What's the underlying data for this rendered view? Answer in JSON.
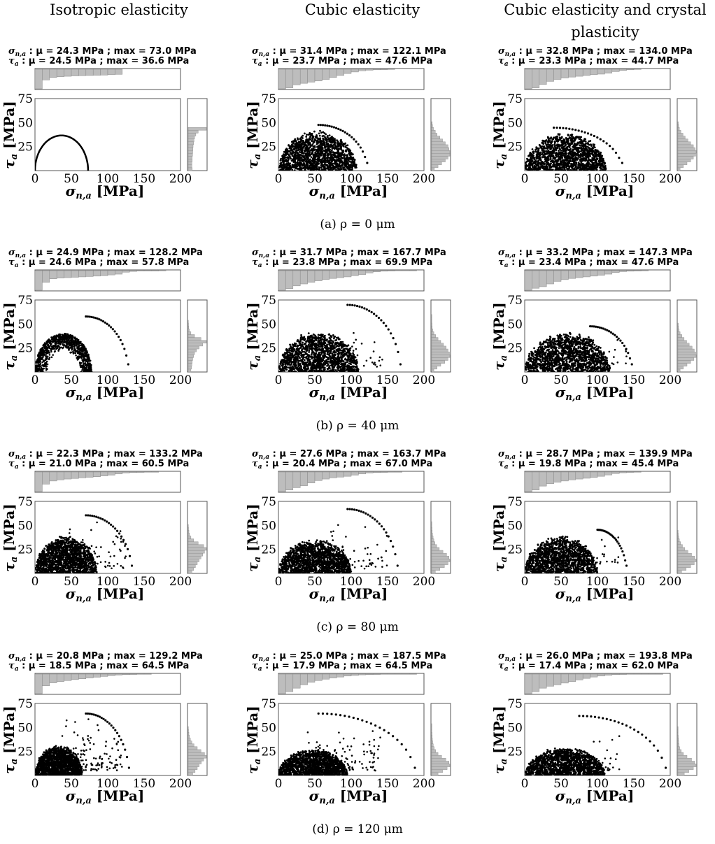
{
  "column_titles": [
    "Isotropic elasticity",
    "Cubic elasticity",
    "Cubic elasticity and crystal plasticity"
  ],
  "column_titles_lines": {
    "c0": [
      "Isotropic elasticity"
    ],
    "c1": [
      "Cubic elasticity"
    ],
    "c2": [
      "Cubic elasticity and crystal",
      "plasticity"
    ]
  },
  "captions": [
    "(a) ρ = 0 μm",
    "(b) ρ = 40 μm",
    "(c) ρ = 80 μm",
    "(d) ρ = 120 μm"
  ],
  "labels": {
    "sigma": "σ",
    "sigma_sub": "n,a",
    "tau": "τ",
    "tau_sub": "a",
    "unit": "[MPa]",
    "stats_sep": " : μ = "
  },
  "chart_data": {
    "type": "scatter",
    "xlim": [
      0,
      200
    ],
    "ylim": [
      0,
      75
    ],
    "xticks": [
      0,
      50,
      100,
      150,
      200
    ],
    "yticks": [
      25,
      50,
      75
    ],
    "xlabel": "σn,a [MPa]",
    "ylabel": "τa [MPa]",
    "panels": [
      {
        "id": "a0",
        "stats": {
          "sigma_mean": "24.3",
          "sigma_max": "73.0",
          "tau_mean": "24.5",
          "tau_max": "36.6"
        },
        "sigma_stat": "σn,a : μ = 24.3 MPa ; max = 73.0 MPa",
        "tau_stat": "τa : μ = 24.5 MPa ; max = 36.6 MPa",
        "xhist": [
          1.0,
          0.55,
          0.42,
          0.38,
          0.36,
          0.34,
          0.33,
          0.32,
          0.31,
          0.3,
          0.28,
          0.26,
          0,
          0,
          0,
          0,
          0,
          0,
          0,
          0
        ],
        "yhist": [
          0.22,
          0.2,
          0.2,
          0.22,
          0.22,
          0.24,
          0.25,
          0.26,
          0.27,
          0.3,
          0.32,
          0.35,
          0.42,
          0.55,
          1.0,
          0,
          0,
          0,
          0,
          0,
          0,
          0,
          0,
          0,
          0
        ],
        "arc": {
          "x0": 0,
          "x1": 73,
          "peak": 36.6
        }
      },
      {
        "id": "a1",
        "stats": {
          "sigma_mean": "31.4",
          "sigma_max": "122.1",
          "tau_mean": "23.7",
          "tau_max": "47.6"
        },
        "sigma_stat": "σn,a : μ = 31.4 MPa ; max = 122.1 MPa",
        "tau_stat": "τa : μ = 23.7 MPa ; max = 47.6 MPa",
        "xhist": [
          1.0,
          0.95,
          0.8,
          0.72,
          0.66,
          0.6,
          0.52,
          0.42,
          0.32,
          0.22,
          0.14,
          0.08,
          0.05,
          0.03,
          0.02,
          0.01,
          0,
          0,
          0,
          0
        ],
        "yhist": [
          0.15,
          0.35,
          0.55,
          0.75,
          0.9,
          1.0,
          1.0,
          0.95,
          0.9,
          0.75,
          0.6,
          0.45,
          0.3,
          0.2,
          0.1,
          0.05,
          0.03,
          0,
          0,
          0,
          0,
          0,
          0,
          0,
          0
        ],
        "cloud": {
          "xmax": 108,
          "ymax": 42
        },
        "arc": {
          "x0": 55,
          "x1": 122,
          "peak": 47.6
        }
      },
      {
        "id": "a2",
        "stats": {
          "sigma_mean": "32.8",
          "sigma_max": "134.0",
          "tau_mean": "23.3",
          "tau_max": "44.7"
        },
        "sigma_stat": "σn,a : μ = 32.8 MPa ; max = 134.0 MPa",
        "tau_stat": "τa : μ = 23.3 MPa ; max = 44.7 MPa",
        "xhist": [
          1.0,
          0.95,
          0.78,
          0.62,
          0.52,
          0.45,
          0.4,
          0.36,
          0.32,
          0.28,
          0.25,
          0.2,
          0.12,
          0.06,
          0.03,
          0.01,
          0,
          0,
          0,
          0
        ],
        "yhist": [
          0.12,
          0.3,
          0.5,
          0.7,
          0.85,
          0.98,
          1.0,
          0.95,
          0.85,
          0.7,
          0.55,
          0.4,
          0.28,
          0.16,
          0.08,
          0.04,
          0.02,
          0,
          0,
          0,
          0,
          0,
          0,
          0,
          0
        ],
        "cloud": {
          "xmax": 112,
          "ymax": 40
        },
        "arc": {
          "x0": 40,
          "x1": 134,
          "peak": 44.7
        }
      },
      {
        "id": "b0",
        "stats": {
          "sigma_mean": "24.9",
          "sigma_max": "128.2",
          "tau_mean": "24.6",
          "tau_max": "57.8"
        },
        "sigma_stat": "σn,a : μ = 24.9 MPa ; max = 128.2 MPa",
        "tau_stat": "τa : μ = 24.6 MPa ; max = 57.8 MPa",
        "xhist": [
          1.0,
          0.6,
          0.42,
          0.38,
          0.36,
          0.34,
          0.32,
          0.3,
          0.28,
          0.26,
          0.22,
          0.18,
          0.08,
          0.04,
          0.02,
          0.02,
          0.02,
          0.01,
          0,
          0
        ],
        "yhist": [
          0.15,
          0.18,
          0.2,
          0.22,
          0.25,
          0.3,
          0.35,
          0.45,
          0.6,
          0.8,
          1.0,
          0.7,
          0.35,
          0.15,
          0.06,
          0.03,
          0.02,
          0.01,
          0,
          0,
          0,
          0,
          0,
          0,
          0
        ],
        "ring": {
          "x0": 0,
          "x1": 78,
          "peak": 40
        },
        "arc": {
          "x0": 70,
          "x1": 128.2,
          "peak": 57.8
        }
      },
      {
        "id": "b1",
        "stats": {
          "sigma_mean": "31.7",
          "sigma_max": "167.7",
          "tau_mean": "23.8",
          "tau_max": "69.9"
        },
        "sigma_stat": "σn,a : μ = 31.7 MPa ; max = 167.7 MPa",
        "tau_stat": "τa : μ = 23.8 MPa ; max = 69.9 MPa",
        "xhist": [
          1.0,
          0.92,
          0.78,
          0.68,
          0.6,
          0.52,
          0.45,
          0.4,
          0.36,
          0.32,
          0.26,
          0.2,
          0.12,
          0.06,
          0.03,
          0.02,
          0.01,
          0.01,
          0.01,
          0
        ],
        "yhist": [
          0.12,
          0.3,
          0.5,
          0.72,
          0.9,
          1.0,
          0.98,
          0.9,
          0.8,
          0.65,
          0.5,
          0.35,
          0.22,
          0.12,
          0.06,
          0.03,
          0.02,
          0.01,
          0.01,
          0.01,
          0,
          0,
          0,
          0,
          0
        ],
        "cloud": {
          "xmax": 110,
          "ymax": 43
        },
        "sparse": {
          "xmin": 70,
          "xmax": 145,
          "ymin": 5,
          "ymax": 55,
          "n": 35
        },
        "arc": {
          "x0": 95,
          "x1": 167.7,
          "peak": 69.9
        }
      },
      {
        "id": "b2",
        "stats": {
          "sigma_mean": "33.2",
          "sigma_max": "147.3",
          "tau_mean": "23.4",
          "tau_max": "47.6"
        },
        "sigma_stat": "σn,a : μ = 33.2 MPa ; max = 147.3 MPa",
        "tau_stat": "τa : μ = 23.4 MPa ; max = 47.6 MPa",
        "xhist": [
          1.0,
          0.9,
          0.82,
          0.68,
          0.55,
          0.46,
          0.4,
          0.36,
          0.32,
          0.28,
          0.24,
          0.18,
          0.1,
          0.05,
          0.03,
          0.02,
          0.01,
          0,
          0,
          0
        ],
        "yhist": [
          0.12,
          0.3,
          0.5,
          0.7,
          0.88,
          1.0,
          0.98,
          0.9,
          0.78,
          0.62,
          0.48,
          0.34,
          0.22,
          0.12,
          0.06,
          0.03,
          0.02,
          0,
          0,
          0,
          0,
          0,
          0,
          0,
          0
        ],
        "cloud": {
          "xmax": 118,
          "ymax": 42
        },
        "sparse": {
          "xmin": 95,
          "xmax": 140,
          "ymin": 8,
          "ymax": 40,
          "n": 15
        },
        "arc": {
          "x0": 90,
          "x1": 147.3,
          "peak": 47.6
        }
      },
      {
        "id": "c0",
        "stats": {
          "sigma_mean": "22.3",
          "sigma_max": "133.2",
          "tau_mean": "21.0",
          "tau_max": "60.5"
        },
        "sigma_stat": "σn,a : μ = 22.3 MPa ; max = 133.2 MPa",
        "tau_stat": "τa : μ = 21.0 MPa ; max = 60.5 MPa",
        "xhist": [
          1.0,
          0.62,
          0.46,
          0.4,
          0.36,
          0.33,
          0.3,
          0.27,
          0.24,
          0.2,
          0.16,
          0.1,
          0.05,
          0.03,
          0.02,
          0.01,
          0.01,
          0,
          0,
          0
        ],
        "yhist": [
          0.2,
          0.3,
          0.4,
          0.5,
          0.6,
          0.7,
          0.8,
          0.9,
          1.0,
          0.85,
          0.55,
          0.3,
          0.15,
          0.07,
          0.04,
          0.02,
          0.01,
          0,
          0,
          0,
          0,
          0,
          0,
          0,
          0
        ],
        "cloud": {
          "xmax": 85,
          "ymax": 40
        },
        "sparse": {
          "xmin": 45,
          "xmax": 125,
          "ymin": 5,
          "ymax": 58,
          "n": 70
        },
        "arc": {
          "x0": 70,
          "x1": 133.2,
          "peak": 60.5
        }
      },
      {
        "id": "c1",
        "stats": {
          "sigma_mean": "27.6",
          "sigma_max": "163.7",
          "tau_mean": "20.4",
          "tau_max": "67.0"
        },
        "sigma_stat": "σn,a : μ = 27.6 MPa ; max = 163.7 MPa",
        "tau_stat": "τa : μ = 20.4 MPa ; max = 67.0 MPa",
        "xhist": [
          1.0,
          0.92,
          0.8,
          0.7,
          0.56,
          0.44,
          0.36,
          0.3,
          0.26,
          0.22,
          0.16,
          0.1,
          0.05,
          0.03,
          0.02,
          0.01,
          0.01,
          0,
          0,
          0
        ],
        "yhist": [
          0.2,
          0.45,
          0.7,
          0.9,
          1.0,
          0.95,
          0.82,
          0.62,
          0.42,
          0.28,
          0.18,
          0.12,
          0.08,
          0.05,
          0.03,
          0.02,
          0.01,
          0.01,
          0,
          0,
          0,
          0,
          0,
          0,
          0
        ],
        "cloud": {
          "xmax": 100,
          "ymax": 36
        },
        "sparse": {
          "xmin": 60,
          "xmax": 150,
          "ymin": 5,
          "ymax": 60,
          "n": 70
        },
        "arc": {
          "x0": 95,
          "x1": 163.7,
          "peak": 67.0
        }
      },
      {
        "id": "c2",
        "stats": {
          "sigma_mean": "28.7",
          "sigma_max": "139.9",
          "tau_mean": "19.8",
          "tau_max": "45.4"
        },
        "sigma_stat": "σn,a : μ = 28.7 MPa ; max = 139.9 MPa",
        "tau_stat": "τa : μ = 19.8 MPa ; max = 45.4 MPa",
        "xhist": [
          1.0,
          0.92,
          0.72,
          0.6,
          0.52,
          0.46,
          0.4,
          0.36,
          0.32,
          0.28,
          0.22,
          0.15,
          0.08,
          0.04,
          0.02,
          0.01,
          0,
          0,
          0,
          0
        ],
        "yhist": [
          0.2,
          0.45,
          0.7,
          0.9,
          1.0,
          0.92,
          0.75,
          0.55,
          0.38,
          0.25,
          0.15,
          0.08,
          0.04,
          0.02,
          0.01,
          0,
          0,
          0,
          0,
          0,
          0,
          0,
          0,
          0,
          0
        ],
        "cloud": {
          "xmax": 100,
          "ymax": 40
        },
        "sparse": {
          "xmin": 90,
          "xmax": 130,
          "ymin": 10,
          "ymax": 40,
          "n": 18
        },
        "arc": {
          "x0": 100,
          "x1": 139.9,
          "peak": 45.4
        }
      },
      {
        "id": "d0",
        "stats": {
          "sigma_mean": "20.8",
          "sigma_max": "129.2",
          "tau_mean": "18.5",
          "tau_max": "64.5"
        },
        "sigma_stat": "σn,a : μ = 20.8 MPa ; max = 129.2 MPa",
        "tau_stat": "τa : μ = 18.5 MPa ; max = 64.5 MPa",
        "xhist": [
          1.0,
          0.6,
          0.45,
          0.38,
          0.33,
          0.28,
          0.24,
          0.2,
          0.16,
          0.12,
          0.08,
          0.05,
          0.03,
          0.02,
          0.01,
          0.01,
          0,
          0,
          0,
          0
        ],
        "yhist": [
          0.25,
          0.38,
          0.5,
          0.6,
          0.72,
          0.85,
          1.0,
          0.9,
          0.7,
          0.5,
          0.32,
          0.2,
          0.12,
          0.07,
          0.04,
          0.02,
          0.01,
          0,
          0,
          0,
          0,
          0,
          0,
          0,
          0
        ],
        "cloud": {
          "xmax": 65,
          "ymax": 32
        },
        "sparse": {
          "xmin": 30,
          "xmax": 120,
          "ymin": 5,
          "ymax": 60,
          "n": 140
        },
        "arc": {
          "x0": 70,
          "x1": 129.2,
          "peak": 64.5
        }
      },
      {
        "id": "d1",
        "stats": {
          "sigma_mean": "25.0",
          "sigma_max": "187.5",
          "tau_mean": "17.9",
          "tau_max": "64.5"
        },
        "sigma_stat": "σn,a : μ = 25.0 MPa ; max = 187.5 MPa",
        "tau_stat": "τa : μ = 17.9 MPa ; max = 64.5 MPa",
        "xhist": [
          1.0,
          0.9,
          0.72,
          0.55,
          0.42,
          0.33,
          0.26,
          0.2,
          0.15,
          0.1,
          0.07,
          0.04,
          0.03,
          0.02,
          0.01,
          0.01,
          0.01,
          0.01,
          0.01,
          0
        ],
        "yhist": [
          0.35,
          0.6,
          0.85,
          1.0,
          0.95,
          0.78,
          0.55,
          0.35,
          0.22,
          0.14,
          0.09,
          0.06,
          0.04,
          0.03,
          0.02,
          0.01,
          0.01,
          0.01,
          0,
          0,
          0,
          0,
          0,
          0,
          0
        ],
        "cloud": {
          "xmax": 95,
          "ymax": 28
        },
        "sparse": {
          "xmin": 40,
          "xmax": 140,
          "ymin": 5,
          "ymax": 55,
          "n": 110
        },
        "arc": {
          "x0": 55,
          "x1": 187.5,
          "peak": 64.5
        }
      },
      {
        "id": "d2",
        "stats": {
          "sigma_mean": "26.0",
          "sigma_max": "193.8",
          "tau_mean": "17.4",
          "tau_max": "62.0"
        },
        "sigma_stat": "σn,a : μ = 26.0 MPa ; max = 193.8 MPa",
        "tau_stat": "τa : μ = 17.4 MPa ; max = 62.0 MPa",
        "xhist": [
          1.0,
          0.9,
          0.72,
          0.62,
          0.55,
          0.46,
          0.38,
          0.3,
          0.22,
          0.15,
          0.1,
          0.06,
          0.03,
          0.02,
          0.01,
          0.01,
          0.01,
          0.01,
          0.01,
          0
        ],
        "yhist": [
          0.35,
          0.6,
          0.85,
          1.0,
          0.92,
          0.75,
          0.5,
          0.3,
          0.18,
          0.1,
          0.06,
          0.04,
          0.03,
          0.02,
          0.01,
          0.01,
          0.01,
          0,
          0,
          0,
          0,
          0,
          0,
          0,
          0
        ],
        "cloud": {
          "xmax": 110,
          "ymax": 30
        },
        "sparse": {
          "xmin": 85,
          "xmax": 130,
          "ymin": 5,
          "ymax": 50,
          "n": 30
        },
        "arc": {
          "x0": 75,
          "x1": 193.8,
          "peak": 62.0
        }
      }
    ]
  }
}
